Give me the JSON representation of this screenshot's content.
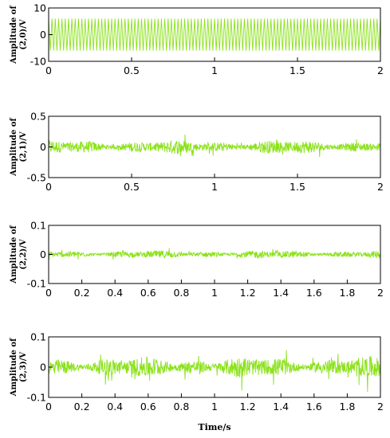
{
  "figure": {
    "xlabel": "Time/s",
    "signal_color": "#8BE21A"
  },
  "chart_data": [
    {
      "type": "line",
      "ylabel_lines": [
        "Amplitude of",
        "(2,0)/V"
      ],
      "xlim": [
        0,
        2
      ],
      "ylim": [
        -10,
        10
      ],
      "xticks": [
        "0",
        "0.5",
        "1",
        "1.5",
        "2"
      ],
      "yticks": [
        "10",
        "0",
        "-10"
      ],
      "signal": {
        "kind": "sinusoid",
        "amplitude": 6,
        "cycles": 100
      }
    },
    {
      "type": "line",
      "ylabel_lines": [
        "Amplitude of",
        "(2,1)/V"
      ],
      "xlim": [
        0,
        2
      ],
      "ylim": [
        -0.5,
        0.5
      ],
      "xticks": [
        "0",
        "0.5",
        "1",
        "1.5",
        "2"
      ],
      "yticks": [
        "0.5",
        "0",
        "-0.5"
      ],
      "signal": {
        "kind": "noise",
        "amplitude": 0.1
      }
    },
    {
      "type": "line",
      "ylabel_lines": [
        "Amplitude of",
        "(2,2)/V"
      ],
      "xlim": [
        0,
        2
      ],
      "ylim": [
        -0.1,
        0.1
      ],
      "xticks": [
        "0",
        "0.2",
        "0.4",
        "0.6",
        "0.8",
        "1",
        "1.2",
        "1.4",
        "1.6",
        "1.8",
        "2"
      ],
      "yticks": [
        "0.1",
        "0",
        "-0.1"
      ],
      "signal": {
        "kind": "noise",
        "amplitude": 0.012
      }
    },
    {
      "type": "line",
      "ylabel_lines": [
        "Amplitude of",
        "(2,3)/V"
      ],
      "xlim": [
        0,
        2
      ],
      "ylim": [
        -0.1,
        0.1
      ],
      "xticks": [
        "0",
        "0.2",
        "0.4",
        "0.6",
        "0.8",
        "1",
        "1.2",
        "1.4",
        "1.6",
        "1.8",
        "2"
      ],
      "yticks": [
        "0.1",
        "0",
        "-0.1"
      ],
      "signal": {
        "kind": "noise",
        "amplitude": 0.03
      }
    }
  ]
}
